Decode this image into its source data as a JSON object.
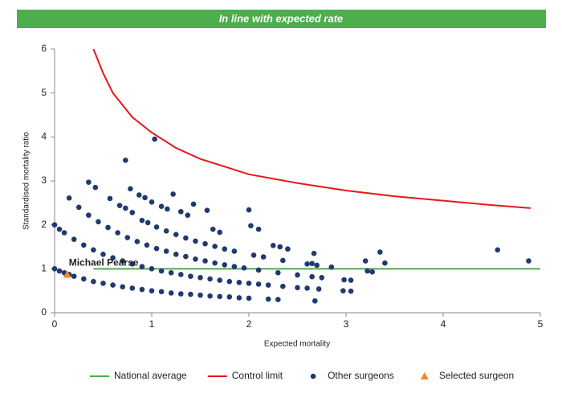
{
  "chart_data": {
    "type": "scatter",
    "banner": "In line with expected rate",
    "xlabel": "Expected mortality",
    "ylabel": "Standardised mortality ratio",
    "xlim": [
      0,
      5
    ],
    "ylim": [
      0,
      6
    ],
    "xticks": [
      0,
      1,
      2,
      3,
      4,
      5
    ],
    "yticks": [
      0,
      1,
      2,
      3,
      4,
      5,
      6
    ],
    "grid": false,
    "legend": "bottom",
    "annotation": "Michael Pearse",
    "series": [
      {
        "name": "National average",
        "kind": "line",
        "color": "#4cae4c",
        "x": [
          0.4,
          5
        ],
        "y": [
          1,
          1
        ]
      },
      {
        "name": "Control limit",
        "kind": "line",
        "color": "#e8161b",
        "x": [
          0.4,
          0.5,
          0.6,
          0.8,
          1.0,
          1.25,
          1.5,
          2.0,
          2.5,
          3.0,
          3.5,
          4.0,
          4.5,
          4.9
        ],
        "y": [
          6,
          5.45,
          5.0,
          4.45,
          4.1,
          3.75,
          3.5,
          3.15,
          2.95,
          2.78,
          2.65,
          2.55,
          2.45,
          2.38
        ]
      },
      {
        "name": "Other surgeons",
        "kind": "dot",
        "color": "#1f3a6e",
        "x": [
          0,
          0.05,
          0.1,
          0.15,
          0.2,
          0.3,
          0.4,
          0.5,
          0.6,
          0.7,
          0.8,
          0.9,
          1.0,
          1.1,
          1.2,
          1.3,
          1.4,
          1.5,
          1.6,
          1.7,
          1.8,
          1.9,
          2.0,
          2.2,
          2.3,
          2.68,
          0,
          0.05,
          0.1,
          0.2,
          0.3,
          0.4,
          0.5,
          0.6,
          0.7,
          0.8,
          0.9,
          1.0,
          1.1,
          1.2,
          1.3,
          1.4,
          1.5,
          1.6,
          1.7,
          1.8,
          1.9,
          2.0,
          2.1,
          2.2,
          2.35,
          2.5,
          2.6,
          2.72,
          2.97,
          3.05,
          0.15,
          0.25,
          0.35,
          0.45,
          0.55,
          0.65,
          0.75,
          0.85,
          0.95,
          1.05,
          1.15,
          1.25,
          1.35,
          1.45,
          1.55,
          1.65,
          1.75,
          1.85,
          1.95,
          2.1,
          2.3,
          2.5,
          2.65,
          2.75,
          2.98,
          3.05,
          0.35,
          0.42,
          0.57,
          0.67,
          0.73,
          0.8,
          0.9,
          0.96,
          1.05,
          1.15,
          1.25,
          1.35,
          1.45,
          1.55,
          1.65,
          1.75,
          1.85,
          2.05,
          2.15,
          2.35,
          2.6,
          2.7,
          2.85,
          0.73,
          0.78,
          0.87,
          0.93,
          1.0,
          1.1,
          1.16,
          1.22,
          1.3,
          1.37,
          1.43,
          1.57,
          1.63,
          1.7,
          1.03,
          2.0,
          2.02,
          2.1,
          2.25,
          2.32,
          2.4,
          2.67,
          2.65,
          3.2,
          3.22,
          3.27,
          3.35,
          3.4,
          4.56,
          4.88
        ],
        "y": [
          1.0,
          0.95,
          0.91,
          0.87,
          0.83,
          0.77,
          0.71,
          0.67,
          0.63,
          0.59,
          0.56,
          0.53,
          0.5,
          0.48,
          0.45,
          0.43,
          0.42,
          0.4,
          0.38,
          0.37,
          0.36,
          0.34,
          0.33,
          0.31,
          0.3,
          0.27,
          2.0,
          1.9,
          1.82,
          1.67,
          1.54,
          1.43,
          1.33,
          1.25,
          1.18,
          1.11,
          1.05,
          1.0,
          0.95,
          0.91,
          0.87,
          0.83,
          0.8,
          0.77,
          0.74,
          0.71,
          0.69,
          0.67,
          0.65,
          0.63,
          0.6,
          0.57,
          0.56,
          0.54,
          0.5,
          0.49,
          2.61,
          2.4,
          2.22,
          2.07,
          1.94,
          1.82,
          1.71,
          1.62,
          1.54,
          1.46,
          1.4,
          1.33,
          1.28,
          1.22,
          1.18,
          1.13,
          1.09,
          1.05,
          1.02,
          0.97,
          0.91,
          0.86,
          0.82,
          0.8,
          0.75,
          0.74,
          2.97,
          2.85,
          2.6,
          2.44,
          2.38,
          2.28,
          2.1,
          2.05,
          1.95,
          1.86,
          1.78,
          1.7,
          1.63,
          1.57,
          1.51,
          1.45,
          1.4,
          1.31,
          1.27,
          1.19,
          1.11,
          1.08,
          1.04,
          3.47,
          2.82,
          2.68,
          2.62,
          2.52,
          2.42,
          2.36,
          2.7,
          2.3,
          2.22,
          2.47,
          2.33,
          1.9,
          1.83,
          3.95,
          2.34,
          1.98,
          1.9,
          1.53,
          1.5,
          1.45,
          1.35,
          1.12,
          1.18,
          0.95,
          0.93,
          1.38,
          1.13,
          1.43,
          1.18
        ]
      },
      {
        "name": "Selected surgeon",
        "kind": "triangle",
        "color": "#f28c28",
        "x": [
          0.13
        ],
        "y": [
          0.87
        ]
      }
    ]
  }
}
